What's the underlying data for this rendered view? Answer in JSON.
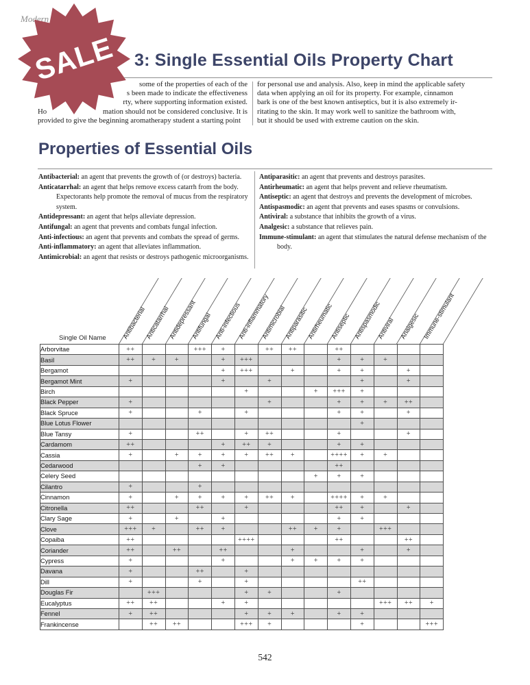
{
  "page": {
    "running_head": "Modern",
    "footer_page_number": "542"
  },
  "badge": {
    "label": "SALE",
    "color": "#a64b55"
  },
  "header": {
    "title": "3: Single Essential Oils Property Chart",
    "intro_left_lines": [
      {
        "a": "",
        "b": "some of the properties of each of the"
      },
      {
        "a": "",
        "b": "s been made to indicate the effectiveness"
      },
      {
        "a": "",
        "b": "rty, where supporting information existed."
      },
      {
        "a": "Ho",
        "b": "mation should not be considered conclusive. It is"
      },
      {
        "a": "provided to give the beginning aromatherapy student a starting point",
        "b": ""
      }
    ],
    "intro_right_lines": [
      "for personal use and analysis. Also, keep in mind the applicable safety",
      "data when applying an oil for its property. For example, cinnamon",
      "bark is one of the best known antiseptics, but it is also extremely ir-",
      "ritating to the skin. It may work well to sanitize the bathroom with,",
      "but it should be used with extreme caution on the skin."
    ]
  },
  "properties_section": {
    "heading": "Properties of Essential Oils",
    "left_definitions": [
      {
        "term": "Antibacterial:",
        "text": "an agent that prevents the growth of (or destroys) bacteria."
      },
      {
        "term": "Anticatarrhal:",
        "text": "an agent that helps remove excess catarrh from the body. Expectorants help promote the removal of mucus from the respiratory system."
      },
      {
        "term": "Antidepressant:",
        "text": "an agent that helps alleviate depression."
      },
      {
        "term": "Antifungal:",
        "text": "an agent that prevents and combats fungal infection."
      },
      {
        "term": "Anti-infectious:",
        "text": "an agent that prevents and combats the spread of germs."
      },
      {
        "term": "Anti-inflammatory:",
        "text": "an agent that alleviates inflammation."
      },
      {
        "term": "Antimicrobial:",
        "text": "an agent that resists or destroys pathogenic microorganisms."
      }
    ],
    "right_definitions": [
      {
        "term": "Antiparasitic:",
        "text": "an agent that prevents and destroys parasites."
      },
      {
        "term": "Antirheumatic:",
        "text": "an agent that helps prevent and relieve rheumatism."
      },
      {
        "term": "Antiseptic:",
        "text": "an agent that destroys and prevents the development of microbes."
      },
      {
        "term": "Antispasmodic:",
        "text": "an agent that prevents and eases spasms or convulsions."
      },
      {
        "term": "Antiviral:",
        "text": "a substance that inhibits the growth of a virus."
      },
      {
        "term": "Analgesic:",
        "text": "a substance that relieves pain."
      },
      {
        "term": "Immune-stimulant:",
        "text": "an agent that stimulates the natural defense mechanism of the body."
      }
    ]
  },
  "oil_chart": {
    "corner_label": "Single Oil Name",
    "columns": [
      "Antibacterial",
      "Anticatarrhal",
      "Antidepressant",
      "Antifungal",
      "Anti-infectious",
      "Anti-inflammatory",
      "Antimicrobial",
      "Antiparasitic",
      "Antirheumatic",
      "Antiseptic",
      "Antispasmodic",
      "Antiviral",
      "Analgesic",
      "Immune-stimulant"
    ],
    "rows": [
      {
        "name": "Arborvitae",
        "values": [
          "++",
          "",
          "",
          "+++",
          "+",
          "",
          "++",
          "++",
          "",
          "++",
          "",
          "",
          "",
          ""
        ]
      },
      {
        "name": "Basil",
        "values": [
          "++",
          "+",
          "+",
          "",
          "+",
          "+++",
          "",
          "",
          "",
          "+",
          "+",
          "+",
          "",
          ""
        ]
      },
      {
        "name": "Bergamot",
        "values": [
          "",
          "",
          "",
          "",
          "+",
          "+++",
          "",
          "+",
          "",
          "+",
          "+",
          "",
          "+",
          ""
        ]
      },
      {
        "name": "Bergamot Mint",
        "values": [
          "+",
          "",
          "",
          "",
          "+",
          "",
          "+",
          "",
          "",
          "",
          "+",
          "",
          "+",
          ""
        ]
      },
      {
        "name": "Birch",
        "values": [
          "",
          "",
          "",
          "",
          "",
          "+",
          "",
          "",
          "+",
          "+++",
          "+",
          "",
          "",
          ""
        ]
      },
      {
        "name": "Black Pepper",
        "values": [
          "+",
          "",
          "",
          "",
          "",
          "",
          "+",
          "",
          "",
          "+",
          "+",
          "+",
          "++",
          ""
        ]
      },
      {
        "name": "Black Spruce",
        "values": [
          "+",
          "",
          "",
          "+",
          "",
          "+",
          "",
          "",
          "",
          "+",
          "+",
          "",
          "+",
          ""
        ]
      },
      {
        "name": "Blue Lotus Flower",
        "values": [
          "",
          "",
          "",
          "",
          "",
          "",
          "",
          "",
          "",
          "",
          "+",
          "",
          "",
          ""
        ]
      },
      {
        "name": "Blue Tansy",
        "values": [
          "+",
          "",
          "",
          "++",
          "",
          "+",
          "++",
          "",
          "",
          "+",
          "",
          "",
          "+",
          ""
        ]
      },
      {
        "name": "Cardamom",
        "values": [
          "++",
          "",
          "",
          "",
          "+",
          "++",
          "+",
          "",
          "",
          "+",
          "+",
          "",
          "",
          ""
        ]
      },
      {
        "name": "Cassia",
        "values": [
          "+",
          "",
          "+",
          "+",
          "+",
          "+",
          "++",
          "+",
          "",
          "++++",
          "+",
          "+",
          "",
          ""
        ]
      },
      {
        "name": "Cedarwood",
        "values": [
          "",
          "",
          "",
          "+",
          "+",
          "",
          "",
          "",
          "",
          "++",
          "",
          "",
          "",
          ""
        ]
      },
      {
        "name": "Celery Seed",
        "values": [
          "",
          "",
          "",
          "",
          "",
          "",
          "",
          "",
          "+",
          "+",
          "+",
          "",
          "",
          ""
        ]
      },
      {
        "name": "Cilantro",
        "values": [
          "+",
          "",
          "",
          "+",
          "",
          "",
          "",
          "",
          "",
          "",
          "",
          "",
          "",
          ""
        ]
      },
      {
        "name": "Cinnamon",
        "values": [
          "+",
          "",
          "+",
          "+",
          "+",
          "+",
          "++",
          "+",
          "",
          "++++",
          "+",
          "+",
          "",
          ""
        ]
      },
      {
        "name": "Citronella",
        "values": [
          "++",
          "",
          "",
          "++",
          "",
          "+",
          "",
          "",
          "",
          "++",
          "+",
          "",
          "+",
          ""
        ]
      },
      {
        "name": "Clary Sage",
        "values": [
          "+",
          "",
          "+",
          "",
          "+",
          "",
          "",
          "",
          "",
          "+",
          "+",
          "",
          "",
          ""
        ]
      },
      {
        "name": "Clove",
        "values": [
          "+++",
          "+",
          "",
          "++",
          "+",
          "",
          "",
          "++",
          "+",
          "+",
          "",
          "+++",
          "",
          ""
        ]
      },
      {
        "name": "Copaiba",
        "values": [
          "++",
          "",
          "",
          "",
          "",
          "++++",
          "",
          "",
          "",
          "++",
          "",
          "",
          "++",
          ""
        ]
      },
      {
        "name": "Coriander",
        "values": [
          "++",
          "",
          "++",
          "",
          "++",
          "",
          "",
          "+",
          "",
          "",
          "+",
          "",
          "+",
          ""
        ]
      },
      {
        "name": "Cypress",
        "values": [
          "+",
          "",
          "",
          "",
          "+",
          "",
          "",
          "+",
          "+",
          "+",
          "+",
          "",
          "",
          ""
        ]
      },
      {
        "name": "Davana",
        "values": [
          "+",
          "",
          "",
          "++",
          "",
          "+",
          "",
          "",
          "",
          "",
          "",
          "",
          "",
          ""
        ]
      },
      {
        "name": "Dill",
        "values": [
          "+",
          "",
          "",
          "+",
          "",
          "+",
          "",
          "",
          "",
          "",
          "++",
          "",
          "",
          ""
        ]
      },
      {
        "name": "Douglas Fir",
        "values": [
          "",
          "+++",
          "",
          "",
          "",
          "+",
          "+",
          "",
          "",
          "+",
          "",
          "",
          "",
          ""
        ]
      },
      {
        "name": "Eucalyptus",
        "values": [
          "++",
          "++",
          "",
          "",
          "+",
          "+",
          "",
          "",
          "",
          "",
          "",
          "+++",
          "++",
          "+"
        ]
      },
      {
        "name": "Fennel",
        "values": [
          "+",
          "++",
          "",
          "",
          "",
          "+",
          "+",
          "+",
          "",
          "+",
          "+",
          "",
          "",
          ""
        ]
      },
      {
        "name": "Frankincense",
        "values": [
          "",
          "++",
          "++",
          "",
          "",
          "+++",
          "+",
          "",
          "",
          "",
          "+",
          "",
          "",
          "+++"
        ]
      }
    ]
  }
}
